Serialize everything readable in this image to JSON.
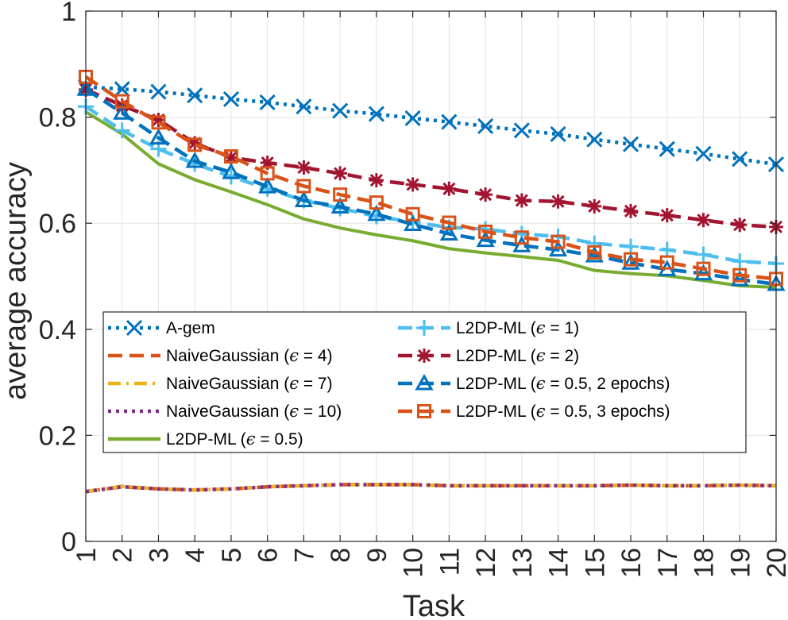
{
  "chart_data": {
    "type": "line",
    "xlabel": "Task",
    "ylabel": "average accuracy",
    "x": [
      1,
      2,
      3,
      4,
      5,
      6,
      7,
      8,
      9,
      10,
      11,
      12,
      13,
      14,
      15,
      16,
      17,
      18,
      19,
      20
    ],
    "xlim": [
      1,
      20
    ],
    "ylim": [
      0,
      1
    ],
    "yticks": [
      0,
      0.2,
      0.4,
      0.6,
      0.8,
      1
    ],
    "ytick_labels": [
      "0",
      "0.2",
      "0.4",
      "0.6",
      "0.8",
      "1"
    ],
    "xtick_labels": [
      "1",
      "2",
      "3",
      "4",
      "5",
      "6",
      "7",
      "8",
      "9",
      "10",
      "11",
      "12",
      "13",
      "14",
      "15",
      "16",
      "17",
      "18",
      "19",
      "20"
    ],
    "grid": true,
    "legend_position": "lower-center",
    "series": [
      {
        "name": "A-gem",
        "prefix": "A-gem",
        "eps": "",
        "suffix": "",
        "color": "#0072BD",
        "dash": "dot",
        "marker": "x",
        "values": [
          0.857,
          0.853,
          0.848,
          0.841,
          0.834,
          0.828,
          0.82,
          0.812,
          0.806,
          0.798,
          0.791,
          0.783,
          0.775,
          0.768,
          0.758,
          0.749,
          0.74,
          0.731,
          0.721,
          0.711
        ]
      },
      {
        "name": "NaiveGaussian (ϵ = 4)",
        "prefix": "NaiveGaussian (",
        "eps": "ϵ",
        "suffix": " = 4)",
        "color": "#D95319",
        "dash": "dash",
        "marker": "none",
        "values": [
          0.094,
          0.103,
          0.099,
          0.097,
          0.099,
          0.103,
          0.105,
          0.107,
          0.107,
          0.107,
          0.105,
          0.105,
          0.105,
          0.105,
          0.105,
          0.106,
          0.105,
          0.105,
          0.106,
          0.105
        ]
      },
      {
        "name": "NaiveGaussian (ϵ = 7)",
        "prefix": "NaiveGaussian (",
        "eps": "ϵ",
        "suffix": " = 7)",
        "color": "#EDB120",
        "dash": "dashdot",
        "marker": "none",
        "values": [
          0.094,
          0.104,
          0.099,
          0.097,
          0.099,
          0.103,
          0.105,
          0.107,
          0.107,
          0.107,
          0.105,
          0.105,
          0.105,
          0.105,
          0.105,
          0.106,
          0.105,
          0.105,
          0.106,
          0.105
        ]
      },
      {
        "name": "NaiveGaussian (ϵ = 10)",
        "prefix": "NaiveGaussian (",
        "eps": "ϵ",
        "suffix": " = 10)",
        "color": "#7E2F8E",
        "dash": "dot",
        "marker": "none",
        "values": [
          0.094,
          0.103,
          0.099,
          0.097,
          0.099,
          0.103,
          0.105,
          0.107,
          0.107,
          0.107,
          0.105,
          0.105,
          0.105,
          0.105,
          0.105,
          0.106,
          0.105,
          0.105,
          0.106,
          0.105
        ]
      },
      {
        "name": "L2DP-ML (ϵ = 0.5)",
        "prefix": "L2DP-ML (",
        "eps": "ϵ",
        "suffix": " = 0.5)",
        "color": "#77AC30",
        "dash": "solid",
        "marker": "none",
        "values": [
          0.81,
          0.768,
          0.712,
          0.682,
          0.659,
          0.635,
          0.608,
          0.591,
          0.578,
          0.567,
          0.552,
          0.544,
          0.537,
          0.53,
          0.511,
          0.505,
          0.501,
          0.492,
          0.482,
          0.479
        ]
      },
      {
        "name": "L2DP-ML (ϵ = 1)",
        "prefix": "L2DP-ML (",
        "eps": "ϵ",
        "suffix": " = 1)",
        "color": "#4DBEEE",
        "dash": "dash",
        "marker": "plus",
        "values": [
          0.82,
          0.775,
          0.74,
          0.712,
          0.688,
          0.665,
          0.643,
          0.628,
          0.613,
          0.602,
          0.592,
          0.589,
          0.58,
          0.575,
          0.562,
          0.556,
          0.55,
          0.541,
          0.528,
          0.524
        ]
      },
      {
        "name": "L2DP-ML (ϵ = 2)",
        "prefix": "L2DP-ML (",
        "eps": "ϵ",
        "suffix": " = 2)",
        "color": "#A2142F",
        "dash": "dash",
        "marker": "star",
        "values": [
          0.852,
          0.822,
          0.795,
          0.751,
          0.724,
          0.714,
          0.705,
          0.694,
          0.681,
          0.673,
          0.665,
          0.654,
          0.643,
          0.641,
          0.632,
          0.623,
          0.615,
          0.606,
          0.597,
          0.593
        ]
      },
      {
        "name": "L2DP-ML (ϵ = 0.5, 2 epochs)",
        "prefix": "L2DP-ML (",
        "eps": "ϵ",
        "suffix": " = 0.5, 2 epochs)",
        "color": "#0072BD",
        "dash": "dash",
        "marker": "triangle",
        "values": [
          0.853,
          0.808,
          0.761,
          0.717,
          0.696,
          0.669,
          0.643,
          0.631,
          0.617,
          0.598,
          0.58,
          0.568,
          0.558,
          0.55,
          0.539,
          0.525,
          0.513,
          0.505,
          0.494,
          0.485
        ]
      },
      {
        "name": "L2DP-ML (ϵ = 0.5, 3 epochs)",
        "prefix": "L2DP-ML (",
        "eps": "ϵ",
        "suffix": " = 0.5, 3 epochs)",
        "color": "#D95319",
        "dash": "dash",
        "marker": "square",
        "values": [
          0.876,
          0.83,
          0.79,
          0.748,
          0.726,
          0.694,
          0.67,
          0.654,
          0.639,
          0.617,
          0.601,
          0.584,
          0.573,
          0.565,
          0.545,
          0.532,
          0.526,
          0.514,
          0.502,
          0.495
        ]
      }
    ]
  }
}
